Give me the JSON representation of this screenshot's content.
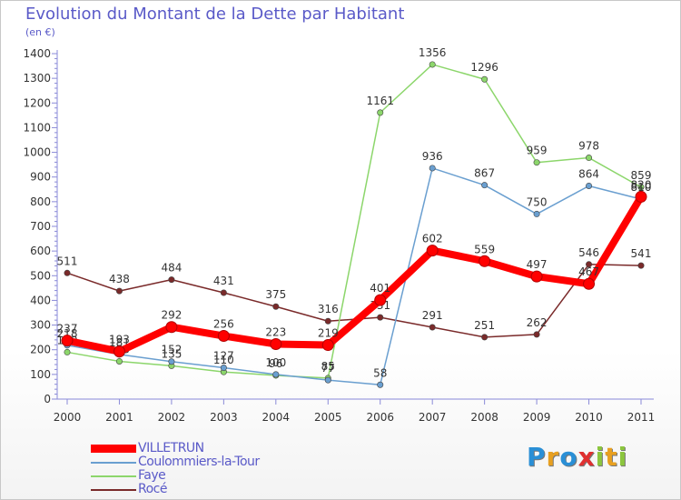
{
  "header": {
    "title": "Evolution du Montant de la Dette par Habitant",
    "unit": "(en €)"
  },
  "logo": {
    "text": "Proxiti",
    "letters": [
      {
        "ch": "P",
        "color": "#2a8fd6"
      },
      {
        "ch": "r",
        "color": "#e8a020"
      },
      {
        "ch": "o",
        "color": "#2a8fd6"
      },
      {
        "ch": "x",
        "color": "#e03030"
      },
      {
        "ch": "i",
        "color": "#8cc63e"
      },
      {
        "ch": "t",
        "color": "#e8a020"
      },
      {
        "ch": "i",
        "color": "#8cc63e"
      }
    ]
  },
  "chart_data": {
    "type": "line",
    "title": "Evolution du Montant de la Dette par Habitant",
    "ylabel": "(en €)",
    "xlabel": "",
    "ylim": [
      0,
      1400
    ],
    "yticks": [
      0,
      100,
      200,
      300,
      400,
      500,
      600,
      700,
      800,
      900,
      1000,
      1100,
      1200,
      1300,
      1400
    ],
    "categories": [
      "2000",
      "2001",
      "2002",
      "2003",
      "2004",
      "2005",
      "2006",
      "2007",
      "2008",
      "2009",
      "2010",
      "2011"
    ],
    "grid": false,
    "legend_position": "bottom-left",
    "series": [
      {
        "name": "Rocé",
        "color": "#7a2a2a",
        "values": [
          511,
          438,
          484,
          431,
          375,
          316,
          331,
          291,
          251,
          262,
          546,
          541
        ]
      },
      {
        "name": "Faye",
        "color": "#8cd66b",
        "values": [
          190,
          153,
          135,
          110,
          96,
          85,
          1161,
          1356,
          1296,
          959,
          978,
          859
        ]
      },
      {
        "name": "Coulommiers-la-Tour",
        "color": "#6a9fd0",
        "values": [
          218,
          181,
          152,
          127,
          100,
          77,
          58,
          936,
          867,
          750,
          864,
          810
        ]
      },
      {
        "name": "VILLETRUN",
        "color": "#ff0000",
        "values": [
          237,
          193,
          292,
          256,
          223,
          219,
          401,
          602,
          559,
          497,
          467,
          820
        ]
      }
    ],
    "legend_order": [
      "VILLETRUN",
      "Coulommiers-la-Tour",
      "Faye",
      "Rocé"
    ]
  }
}
